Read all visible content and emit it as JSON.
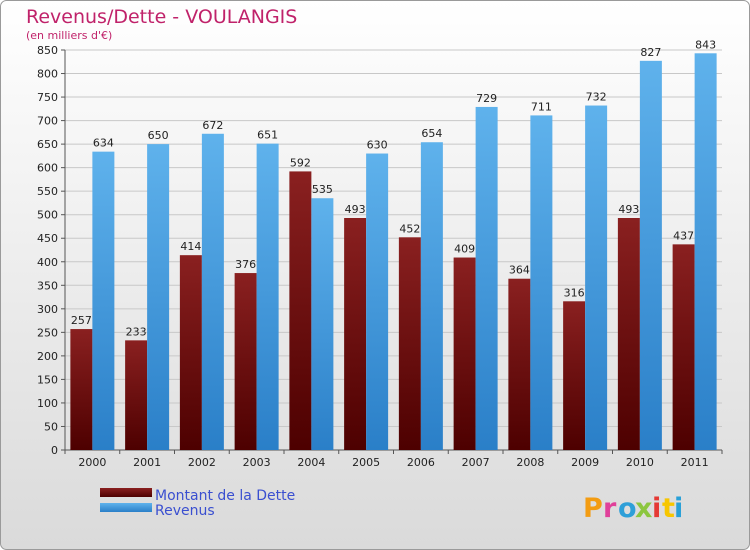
{
  "chart_data": {
    "type": "bar",
    "title": "Revenus/Dette - VOULANGIS",
    "subtitle": "(en milliers d'€)",
    "categories": [
      "2000",
      "2001",
      "2002",
      "2003",
      "2004",
      "2005",
      "2006",
      "2007",
      "2008",
      "2009",
      "2010",
      "2011"
    ],
    "series": [
      {
        "name": "Montant de la Dette",
        "values": [
          257,
          233,
          414,
          376,
          592,
          493,
          452,
          409,
          364,
          316,
          493,
          437
        ],
        "color": "#6e0a0a"
      },
      {
        "name": "Revenus",
        "values": [
          634,
          650,
          672,
          651,
          535,
          630,
          654,
          729,
          711,
          732,
          827,
          843
        ],
        "color": "#3d9be0"
      }
    ],
    "ylim": [
      0,
      850
    ],
    "ytick_step": 50,
    "grid": true,
    "legend_position": "bottom-left"
  },
  "logo": {
    "text": "Proxiti",
    "colors": [
      "#f39c12",
      "#e0409a",
      "#2e9fd8",
      "#8cc63f",
      "#e53935",
      "#f7c600",
      "#27a0d8"
    ]
  }
}
